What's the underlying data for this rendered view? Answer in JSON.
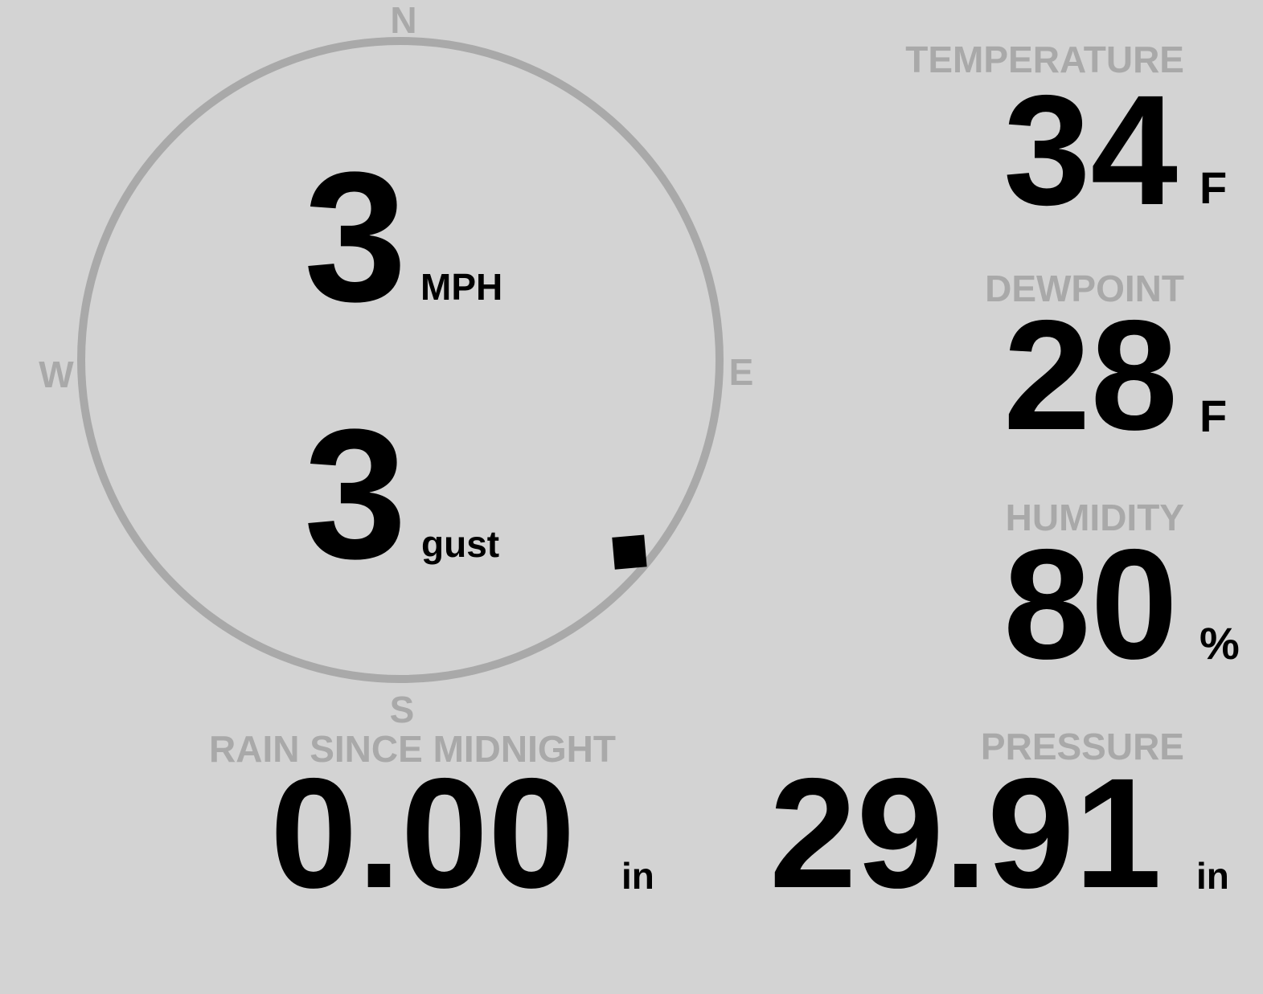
{
  "colors": {
    "background": "#d3d3d3",
    "label": "#a9a9a9",
    "value": "#000000",
    "compass_ring": "#a9a9a9",
    "wind_marker": "#000000"
  },
  "compass": {
    "north": "N",
    "south": "S",
    "east": "E",
    "west": "W",
    "wind_direction_degrees": 130,
    "marker_icon": "wind-direction-diamond"
  },
  "wind": {
    "speed": "3",
    "speed_unit": "MPH",
    "gust": "3",
    "gust_unit": "gust"
  },
  "temperature": {
    "label": "TEMPERATURE",
    "value": "34",
    "unit": "F"
  },
  "dewpoint": {
    "label": "DEWPOINT",
    "value": "28",
    "unit": "F"
  },
  "humidity": {
    "label": "HUMIDITY",
    "value": "80",
    "unit": "%"
  },
  "rain": {
    "label": "RAIN SINCE MIDNIGHT",
    "value": "0.00",
    "unit": "in"
  },
  "pressure": {
    "label": "PRESSURE",
    "value": "29.91",
    "unit": "in"
  }
}
